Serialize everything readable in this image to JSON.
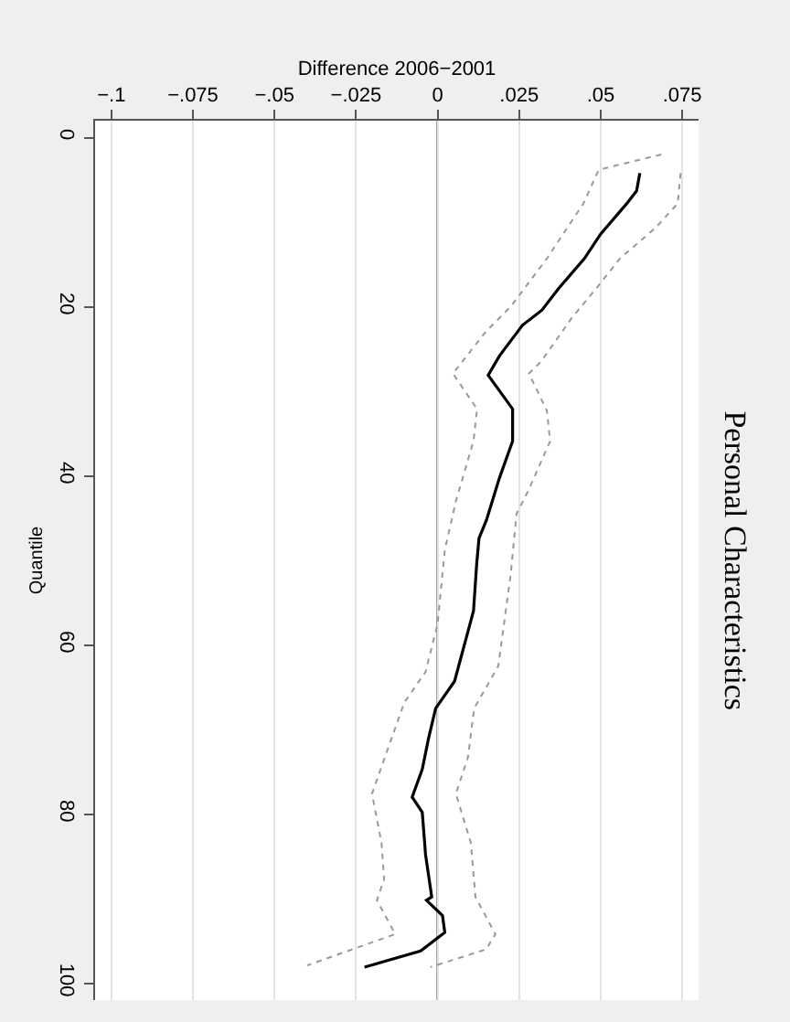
{
  "chart_data": {
    "type": "line",
    "title": "Personal Characteristics",
    "xlabel": "Difference 2006−2001",
    "ylabel": "Quantile",
    "xlim": [
      -0.105,
      0.08
    ],
    "xticks": [
      {
        "value": -0.1,
        "label": "−.1"
      },
      {
        "value": -0.075,
        "label": "−.075"
      },
      {
        "value": -0.05,
        "label": "−.05"
      },
      {
        "value": -0.025,
        "label": "−.025"
      },
      0,
      {
        "value": 0.025,
        "label": ".025"
      },
      {
        "value": 0.05,
        "label": ".05"
      },
      {
        "value": 0.075,
        "label": ".075"
      }
    ],
    "ylim": [
      102,
      -2
    ],
    "yticks": [
      0,
      20,
      40,
      60,
      80,
      100
    ],
    "grid": "x",
    "marker": "none",
    "ref_lines": [
      {
        "axis": "x",
        "value": 0,
        "color": "#666666"
      }
    ],
    "series": [
      {
        "color": "#000000",
        "line_style": "solid",
        "x": [
          0.062,
          0.061,
          0.058,
          0.05,
          0.045,
          0.037,
          0.032,
          0.026,
          0.019,
          0.0155,
          0.023,
          0.023,
          0.019,
          0.015,
          0.0127,
          0.012,
          0.011,
          0.0075,
          0.0052,
          -0.0006,
          -0.0028,
          -0.0047,
          -0.0078,
          -0.0047,
          -0.0037,
          -0.0018,
          -0.0034,
          0.0015,
          0.0022,
          -0.0052,
          -0.0224
        ],
        "values": [
          4.2,
          6.3,
          7.8,
          11.4,
          14.3,
          17.9,
          20.4,
          22.2,
          25.8,
          28.1,
          32.1,
          35.9,
          40.2,
          45.2,
          47.4,
          50.3,
          56,
          61,
          64.3,
          67.5,
          71.1,
          74.7,
          78,
          79.8,
          84.8,
          89.8,
          90.2,
          92,
          94,
          96.2,
          98.1
        ]
      },
      {
        "color": "#999999",
        "line_style": "dotted",
        "x": [
          0.0686,
          0.0494,
          0.0447,
          0.0335,
          0.0224,
          0.0149,
          0.0047,
          0.0121,
          0.011,
          0.0056,
          0.0022,
          0,
          -0.0037,
          -0.0102,
          -0.0149,
          -0.0201,
          -0.0172,
          -0.0164,
          -0.0186,
          -0.013,
          -0.04
        ],
        "values": [
          2.0,
          3.8,
          7.8,
          14.3,
          20,
          22.9,
          27.9,
          32.1,
          35.9,
          43,
          48.8,
          57.5,
          63.2,
          66.8,
          71.9,
          77.6,
          83.4,
          87.7,
          90.2,
          94.2,
          97.9
        ]
      },
      {
        "color": "#999999",
        "line_style": "dotted",
        "x": [
          0.0745,
          0.0736,
          0.067,
          0.0559,
          0.0485,
          0.041,
          0.0317,
          0.028,
          0.0335,
          0.0345,
          0.028,
          0.0242,
          0.0224,
          0.0186,
          0.0112,
          0.0093,
          0.0056,
          0.0102,
          0.0116,
          0.0177,
          0.0149,
          -0.0022
        ],
        "values": [
          4.2,
          7.8,
          10.6,
          14.3,
          17.9,
          21.4,
          26.5,
          27.9,
          32.3,
          35.9,
          41.6,
          44.5,
          51.7,
          62.5,
          67.5,
          73.3,
          77.6,
          83.4,
          89.8,
          94.2,
          96,
          98.1
        ]
      }
    ]
  }
}
